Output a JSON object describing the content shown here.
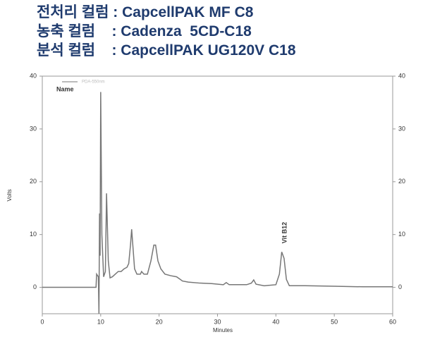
{
  "header": {
    "lines": [
      "전처리 컬럼 : CapcellPAK MF C8",
      "농축 컬럼    : Cadenza  5CD-C18",
      "분석 컬럼    : CapcellPAK UG120V C18"
    ]
  },
  "chart_data": {
    "type": "line",
    "xlabel": "Minutes",
    "ylabel": "Volts",
    "xlim": [
      0,
      60
    ],
    "xticks": [
      0,
      10,
      20,
      30,
      40,
      50,
      60
    ],
    "ylim": [
      -5,
      40
    ],
    "yticks": [
      0,
      10,
      20,
      30,
      40
    ],
    "y2lim": [
      -5,
      40
    ],
    "y2ticks": [
      0,
      10,
      20,
      30,
      40
    ],
    "annotations": [
      "Name",
      "Vit B12"
    ],
    "series": [
      {
        "name": "PDA-550nm",
        "color": "#777777",
        "x": [
          0,
          9.2,
          9.3,
          9.6,
          9.7,
          9.8,
          9.9,
          10.0,
          10.2,
          10.5,
          10.8,
          11.0,
          11.3,
          11.6,
          12,
          12.5,
          13,
          13.5,
          14,
          14.5,
          14.8,
          15.1,
          15.3,
          15.5,
          15.8,
          16.2,
          16.8,
          17,
          17.4,
          18,
          18.6,
          19.1,
          19.4,
          19.8,
          20.3,
          21,
          22,
          23,
          24,
          25,
          27,
          29,
          31,
          31.5,
          32,
          35,
          35.8,
          36.2,
          36.6,
          38,
          40,
          40.6,
          41,
          41.4,
          41.8,
          42.3,
          45,
          50,
          55,
          60
        ],
        "values": [
          0,
          0,
          2.5,
          2,
          -5,
          14,
          6,
          37,
          10,
          2,
          3,
          17.8,
          5,
          1.8,
          2,
          2.5,
          3,
          3,
          3.5,
          3.8,
          4.5,
          8,
          11,
          8,
          3.5,
          2.5,
          2.5,
          3,
          2.5,
          2.5,
          5,
          8,
          8,
          5,
          3.5,
          2.5,
          2.2,
          2,
          1.2,
          1,
          0.8,
          0.7,
          0.5,
          0.9,
          0.5,
          0.5,
          0.8,
          1.4,
          0.6,
          0.3,
          0.5,
          2.5,
          6.7,
          5.5,
          1.5,
          0.3,
          0.3,
          0.2,
          0.1,
          0.1
        ]
      }
    ]
  }
}
